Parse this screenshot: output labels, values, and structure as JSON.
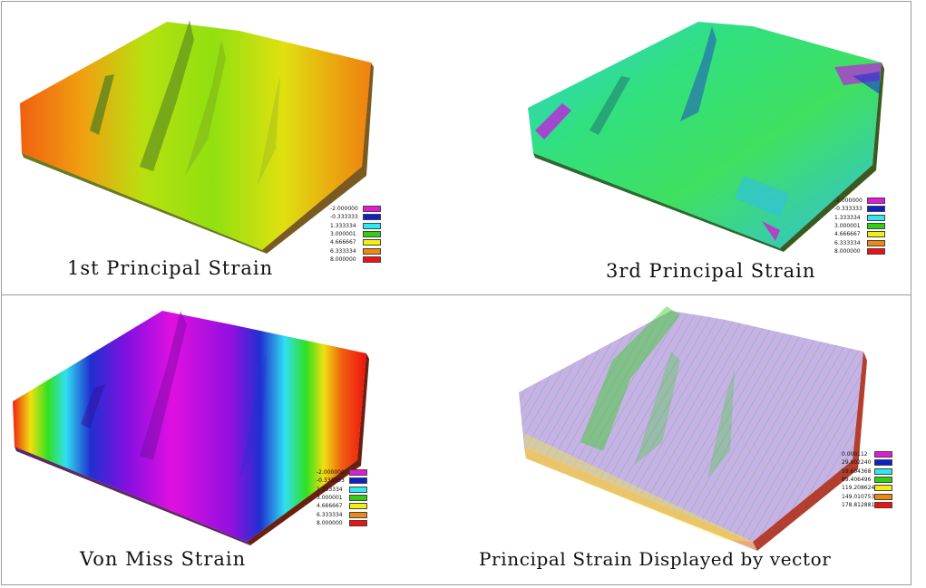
{
  "panels": [
    {
      "caption": "1st Principal Strain",
      "legend": [
        "-2.000000",
        "-0.333333",
        "1.333334",
        "3.000001",
        "4.666667",
        "6.333334",
        "8.000000"
      ]
    },
    {
      "caption": "3rd Principal Strain",
      "legend": [
        "-2.000000",
        "-0.333333",
        "1.333334",
        "3.000001",
        "4.666667",
        "6.333334",
        "8.000000"
      ]
    },
    {
      "caption": "Von Miss Strain",
      "legend": [
        "-2.000000",
        "-0.333333",
        "1.333334",
        "3.000001",
        "4.666667",
        "6.333334",
        "8.000000"
      ]
    },
    {
      "caption": "Principal Strain Displayed by vector",
      "legend": [
        "0.000112",
        "29.802240",
        "59.604368",
        "89.406496",
        "119.208624",
        "149.010753",
        "178.812881"
      ]
    }
  ],
  "legend_colors": [
    "#e21ad8",
    "#1020c8",
    "#30e8f0",
    "#30d010",
    "#f0f010",
    "#f08810",
    "#f01010"
  ]
}
